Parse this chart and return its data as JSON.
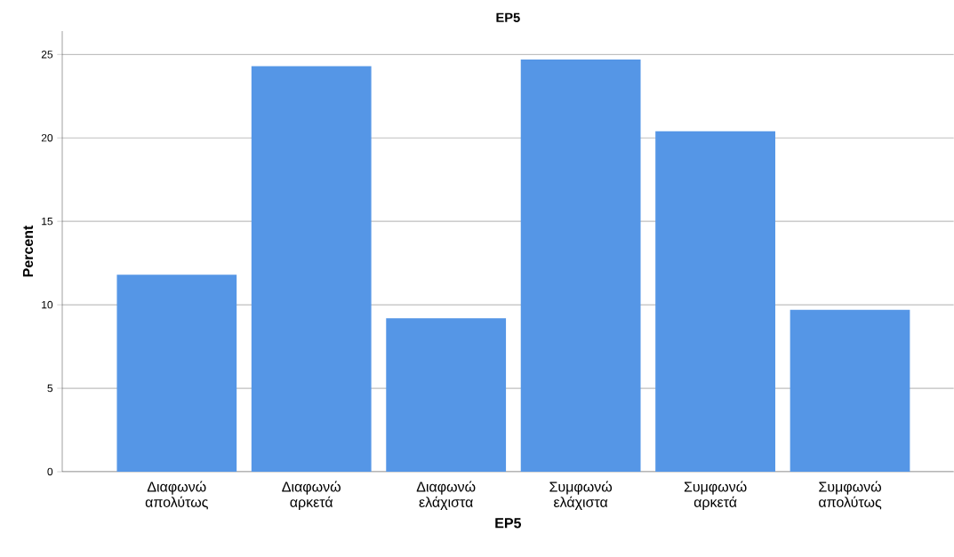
{
  "chart_data": {
    "type": "bar",
    "title": "EP5",
    "xlabel": "EP5",
    "ylabel": "Percent",
    "categories": [
      "Διαφωνώ απολύτως",
      "Διαφωνώ αρκετά",
      "Διαφωνώ ελάχιστα",
      "Συμφωνώ ελάχιστα",
      "Συμφωνώ αρκετά",
      "Συμφωνώ απολύτως"
    ],
    "values": [
      11.8,
      24.3,
      9.2,
      24.7,
      20.4,
      9.7
    ],
    "color": "#5596e6",
    "ylim": [
      0,
      26.4
    ],
    "yticks": [
      0,
      5,
      10,
      15,
      20,
      25
    ],
    "grid": "y"
  }
}
